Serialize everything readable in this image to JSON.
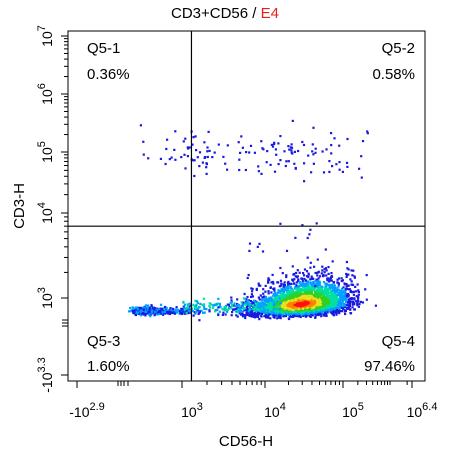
{
  "chart_data": {
    "type": "scatter",
    "title_main": "CD3+CD56 / ",
    "title_sample": "E4",
    "title_sample_color": "#e8201c",
    "xlabel": "CD56-H",
    "ylabel": "CD3-H",
    "x_scale": "biexponential",
    "y_scale": "biexponential",
    "xlim_label": [
      "-10^2.9",
      "10^6.4"
    ],
    "ylim_label": [
      "-10^3.3",
      "10^7"
    ],
    "x_ticks": [
      {
        "base": "-10",
        "exp": "2.9",
        "value": -794
      },
      {
        "base": "10",
        "exp": "3",
        "value": 1000
      },
      {
        "base": "10",
        "exp": "4",
        "value": 10000
      },
      {
        "base": "10",
        "exp": "5",
        "value": 100000
      },
      {
        "base": "10",
        "exp": "6.4",
        "value": 2511886
      }
    ],
    "y_ticks": [
      {
        "base": "-10",
        "exp": "3.3",
        "value": -1995
      },
      {
        "base": "10",
        "exp": "3",
        "value": 1000
      },
      {
        "base": "10",
        "exp": "4",
        "value": 10000
      },
      {
        "base": "10",
        "exp": "5",
        "value": 100000
      },
      {
        "base": "10",
        "exp": "6",
        "value": 1000000
      },
      {
        "base": "10",
        "exp": "7",
        "value": 10000000
      }
    ],
    "gate": {
      "x_value": 1300,
      "y_value": 7000
    },
    "quadrants": [
      {
        "name": "Q5-1",
        "percent": "0.36%",
        "position": "top-left"
      },
      {
        "name": "Q5-2",
        "percent": "0.58%",
        "position": "top-right"
      },
      {
        "name": "Q5-3",
        "percent": "1.60%",
        "position": "bottom-left"
      },
      {
        "name": "Q5-4",
        "percent": "97.46%",
        "position": "bottom-right"
      }
    ],
    "populations": [
      {
        "label": "CD3+ CD56- events",
        "region": "Q5-1",
        "center_log": [
          3.05,
          5.05
        ],
        "count": 50
      },
      {
        "label": "CD3+ CD56+ events",
        "region": "Q5-2",
        "center_log": [
          4.35,
          5.0
        ],
        "count": 90
      },
      {
        "label": "CD3- CD56- events",
        "region": "Q5-3",
        "center_log": [
          2.7,
          2.72
        ],
        "count": 450
      },
      {
        "label": "CD3- CD56+ events",
        "region": "Q5-4",
        "center_log": [
          4.45,
          2.9
        ],
        "count": 3000
      }
    ],
    "density_colors": [
      "#1a1adf",
      "#00a0ff",
      "#00e0a0",
      "#30d020",
      "#e8e020",
      "#ff8000",
      "#ff1010"
    ],
    "grid": false,
    "legend": "none"
  }
}
